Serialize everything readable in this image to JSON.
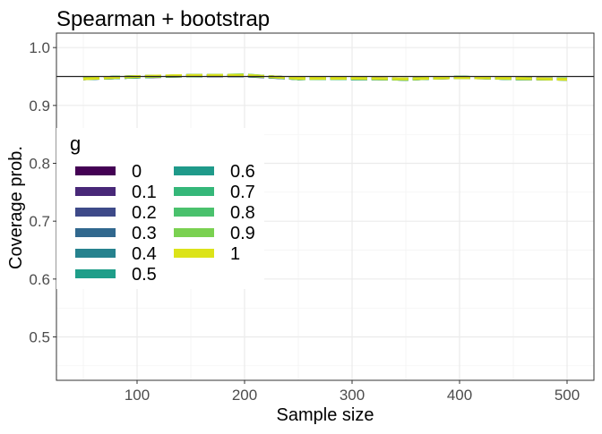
{
  "chart_data": {
    "type": "line",
    "title": "Spearman + bootstrap",
    "xlabel": "Sample size",
    "ylabel": "Coverage prob.",
    "xlim": [
      25,
      525
    ],
    "ylim": [
      0.425,
      1.025
    ],
    "x_ticks": [
      100,
      200,
      300,
      400,
      500
    ],
    "y_ticks": [
      0.5,
      0.6,
      0.7,
      0.8,
      0.9,
      1.0
    ],
    "y_tick_labels": [
      "0.5",
      "0.6",
      "0.7",
      "0.8",
      "0.9",
      "1.0"
    ],
    "grid": true,
    "reference_line": 0.95,
    "x": [
      50,
      100,
      150,
      200,
      250,
      300,
      350,
      400,
      450,
      500
    ],
    "legend": {
      "title": "g",
      "placement": "left-middle",
      "ncol": 2
    },
    "series": [
      {
        "name": "0",
        "color": "#440154",
        "values": [
          0.946,
          0.949,
          0.951,
          0.952,
          0.947,
          0.947,
          0.946,
          0.948,
          0.947,
          0.946
        ]
      },
      {
        "name": "0.1",
        "color": "#482878",
        "values": [
          0.947,
          0.95,
          0.951,
          0.951,
          0.946,
          0.947,
          0.945,
          0.949,
          0.946,
          0.946
        ]
      },
      {
        "name": "0.2",
        "color": "#3E4A89",
        "values": [
          0.946,
          0.949,
          0.952,
          0.952,
          0.947,
          0.946,
          0.946,
          0.948,
          0.947,
          0.945
        ]
      },
      {
        "name": "0.3",
        "color": "#31688E",
        "values": [
          0.947,
          0.95,
          0.951,
          0.952,
          0.946,
          0.947,
          0.945,
          0.949,
          0.946,
          0.946
        ]
      },
      {
        "name": "0.4",
        "color": "#26828E",
        "values": [
          0.946,
          0.949,
          0.952,
          0.951,
          0.947,
          0.946,
          0.946,
          0.948,
          0.947,
          0.945
        ]
      },
      {
        "name": "0.5",
        "color": "#1F9E89",
        "values": [
          0.947,
          0.95,
          0.951,
          0.952,
          0.946,
          0.947,
          0.945,
          0.949,
          0.946,
          0.946
        ]
      },
      {
        "name": "0.6",
        "color": "#1F9A8A",
        "values": [
          0.946,
          0.949,
          0.952,
          0.952,
          0.947,
          0.946,
          0.946,
          0.948,
          0.947,
          0.945
        ]
      },
      {
        "name": "0.7",
        "color": "#35B779",
        "values": [
          0.947,
          0.95,
          0.951,
          0.953,
          0.946,
          0.947,
          0.945,
          0.949,
          0.946,
          0.946
        ]
      },
      {
        "name": "0.8",
        "color": "#4AC16D",
        "values": [
          0.946,
          0.949,
          0.952,
          0.952,
          0.947,
          0.946,
          0.946,
          0.948,
          0.947,
          0.945
        ]
      },
      {
        "name": "0.9",
        "color": "#7AD151",
        "values": [
          0.947,
          0.95,
          0.951,
          0.953,
          0.946,
          0.947,
          0.945,
          0.949,
          0.946,
          0.946
        ]
      },
      {
        "name": "1",
        "color": "#DCE319",
        "values": [
          0.946,
          0.95,
          0.952,
          0.952,
          0.947,
          0.947,
          0.946,
          0.948,
          0.947,
          0.945
        ]
      }
    ]
  }
}
